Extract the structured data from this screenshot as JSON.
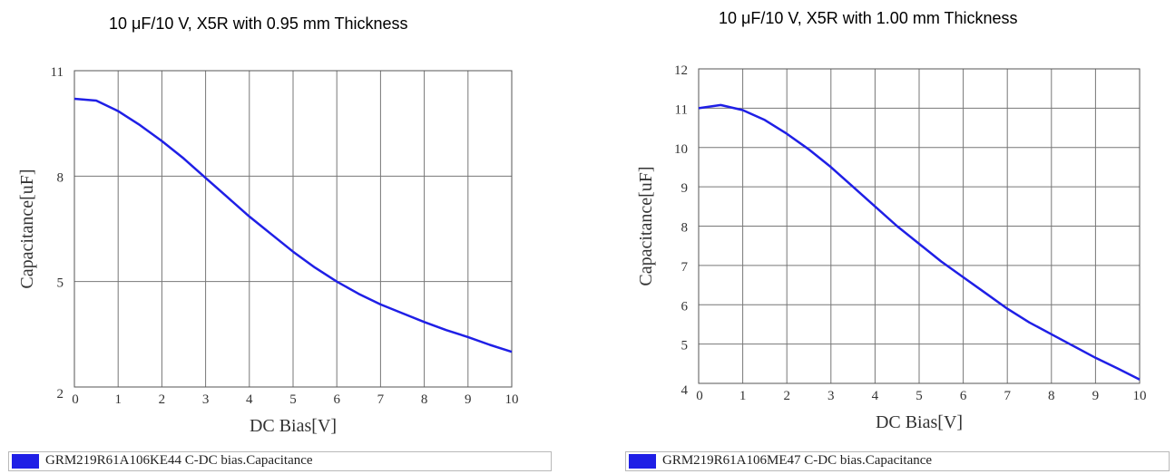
{
  "chart_data": [
    {
      "type": "line",
      "title": "10 μF/10 V, X5R with 0.95 mm Thickness",
      "xlabel": "DC Bias[V]",
      "ylabel": "Capacitance[uF]",
      "xlim": [
        0,
        10
      ],
      "ylim": [
        2,
        11
      ],
      "x_ticks": [
        0,
        1,
        2,
        3,
        4,
        5,
        6,
        7,
        8,
        9,
        10
      ],
      "y_ticks": [
        2,
        5,
        8,
        11
      ],
      "grid": true,
      "legend_position": "bottom",
      "series": [
        {
          "name": "GRM219R61A106KE44 C-DC bias.Capacitance",
          "color": "#1f1fe6",
          "x": [
            0,
            0.5,
            1,
            1.5,
            2,
            2.5,
            3,
            3.5,
            4,
            4.5,
            5,
            5.5,
            6,
            6.5,
            7,
            7.5,
            8,
            8.5,
            9,
            9.5,
            10
          ],
          "y": [
            10.2,
            10.15,
            9.85,
            9.45,
            9.0,
            8.5,
            7.95,
            7.4,
            6.85,
            6.35,
            5.85,
            5.4,
            5.0,
            4.65,
            4.35,
            4.1,
            3.85,
            3.62,
            3.42,
            3.2,
            3.0
          ]
        }
      ]
    },
    {
      "type": "line",
      "title": "10 μF/10 V, X5R with 1.00 mm Thickness",
      "xlabel": "DC Bias[V]",
      "ylabel": "Capacitance[uF]",
      "xlim": [
        0,
        10
      ],
      "ylim": [
        4,
        12
      ],
      "x_ticks": [
        0,
        1,
        2,
        3,
        4,
        5,
        6,
        7,
        8,
        9,
        10
      ],
      "y_ticks": [
        4,
        5,
        6,
        7,
        8,
        9,
        10,
        11,
        12
      ],
      "grid": true,
      "legend_position": "bottom",
      "series": [
        {
          "name": "GRM219R61A106ME47 C-DC bias.Capacitance",
          "color": "#1f1fe6",
          "x": [
            0,
            0.5,
            1,
            1.5,
            2,
            2.5,
            3,
            3.5,
            4,
            4.5,
            5,
            5.5,
            6,
            6.5,
            7,
            7.5,
            8,
            8.5,
            9,
            9.5,
            10
          ],
          "y": [
            11.0,
            11.08,
            10.95,
            10.7,
            10.35,
            9.95,
            9.5,
            9.0,
            8.5,
            8.0,
            7.55,
            7.1,
            6.7,
            6.3,
            5.9,
            5.55,
            5.25,
            4.95,
            4.65,
            4.38,
            4.1
          ]
        }
      ]
    }
  ]
}
